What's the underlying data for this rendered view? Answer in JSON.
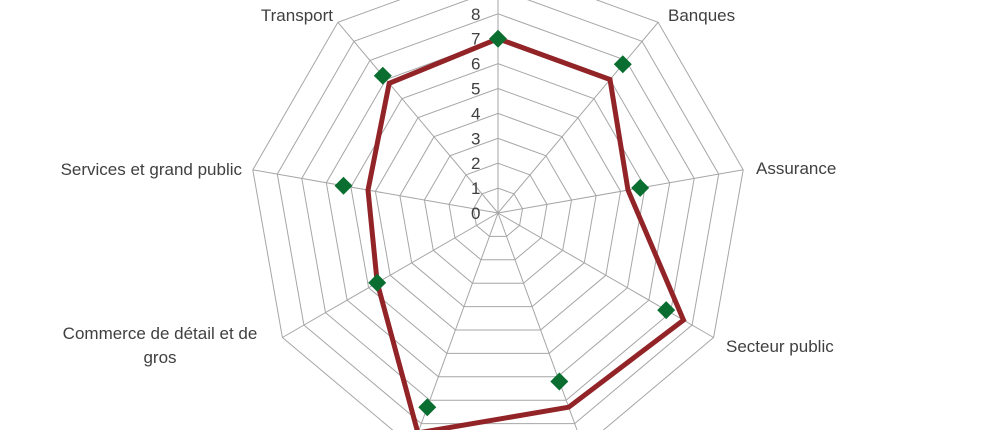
{
  "chart_data": {
    "type": "radar",
    "categories": [
      "",
      "Banques",
      "Assurance",
      "Secteur public",
      "",
      "",
      "Commerce de détail et de gros",
      "Services et grand public",
      "Transport"
    ],
    "ticks": [
      "0",
      "1",
      "2",
      "3",
      "4",
      "5",
      "6",
      "7",
      "8"
    ],
    "range": [
      0,
      8
    ],
    "series": [
      {
        "values": [
          7,
          7,
          5.3,
          8.6,
          8.3,
          9.4,
          5.6,
          5.3,
          6.8
        ],
        "color": "#922428",
        "style": "line"
      },
      {
        "values": [
          7,
          7.8,
          5.8,
          7.8,
          7.2,
          8.3,
          5.6,
          6.3,
          7.2
        ],
        "color": "#0b6e31",
        "style": "diamond-markers"
      }
    ]
  }
}
